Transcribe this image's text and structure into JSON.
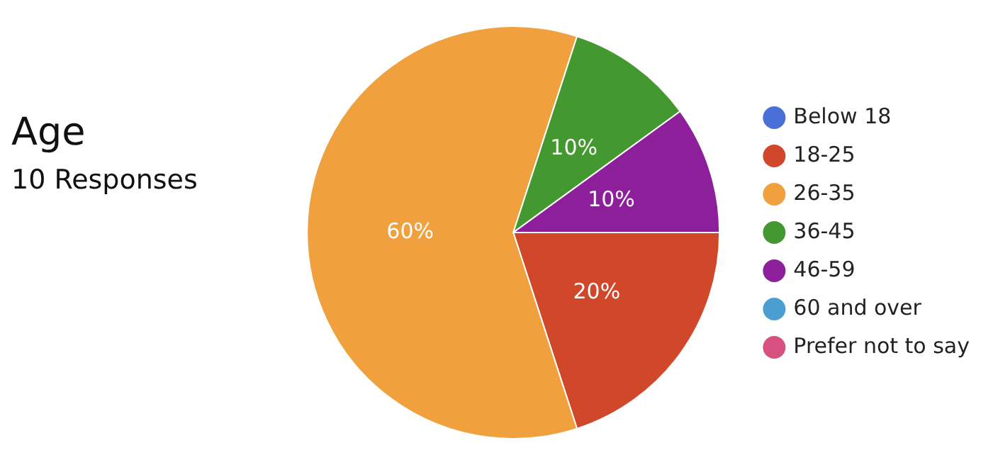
{
  "chart_data": {
    "type": "pie",
    "title": "Age",
    "subtitle": "10 Responses",
    "categories": [
      "Below 18",
      "18-25",
      "26-35",
      "36-45",
      "46-59",
      "60 and over",
      "Prefer not to say"
    ],
    "values": [
      0,
      20,
      60,
      10,
      10,
      0,
      0
    ],
    "colors": [
      "#4a6fd6",
      "#d0472a",
      "#f0a03c",
      "#43982f",
      "#8e1f9b",
      "#4a9fd0",
      "#d65080"
    ],
    "value_labels": [
      null,
      "20%",
      "60%",
      "10%",
      "10%",
      null,
      null
    ],
    "legend": "right"
  }
}
